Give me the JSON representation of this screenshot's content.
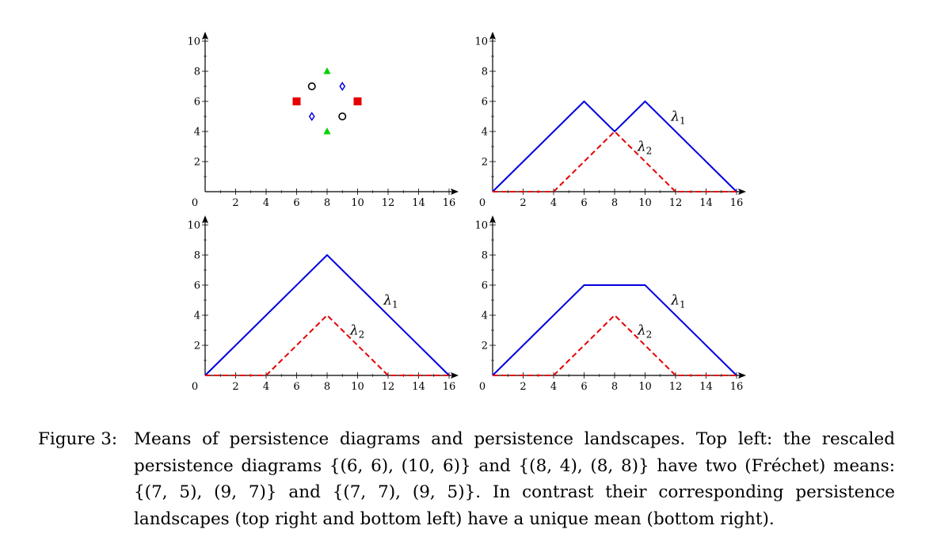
{
  "chart_data": [
    {
      "type": "scatter",
      "xlim": [
        0,
        16
      ],
      "ylim": [
        0,
        10
      ],
      "xticks": [
        0,
        2,
        4,
        6,
        8,
        10,
        12,
        14,
        16
      ],
      "yticks": [
        2,
        4,
        6,
        8,
        10
      ],
      "series": [
        {
          "marker": "square",
          "color": "#e60000",
          "points": [
            [
              6,
              6
            ],
            [
              10,
              6
            ]
          ]
        },
        {
          "marker": "triangle",
          "color": "#00d000",
          "points": [
            [
              8,
              4
            ],
            [
              8,
              8
            ]
          ]
        },
        {
          "marker": "diamond",
          "color": "#0000e0",
          "points": [
            [
              7,
              5
            ],
            [
              9,
              7
            ]
          ]
        },
        {
          "marker": "circle",
          "color": "#000000",
          "points": [
            [
              7,
              7
            ],
            [
              9,
              5
            ]
          ]
        }
      ],
      "labels": []
    },
    {
      "type": "line",
      "xlim": [
        0,
        16
      ],
      "ylim": [
        0,
        10
      ],
      "xticks": [
        0,
        2,
        4,
        6,
        8,
        10,
        12,
        14,
        16
      ],
      "yticks": [
        2,
        4,
        6,
        8,
        10
      ],
      "series": [
        {
          "style": "solid",
          "color": "#0000e0",
          "points": [
            [
              0,
              0
            ],
            [
              6,
              6
            ],
            [
              8,
              4
            ],
            [
              10,
              6
            ],
            [
              16,
              0
            ]
          ]
        },
        {
          "style": "dashed",
          "color": "#e60000",
          "points": [
            [
              0,
              0
            ],
            [
              4,
              0
            ],
            [
              8,
              4
            ],
            [
              12,
              0
            ],
            [
              16,
              0
            ]
          ]
        }
      ],
      "labels": [
        {
          "base": "λ",
          "sub": "1",
          "x": 11.7,
          "y": 4.7
        },
        {
          "base": "λ",
          "sub": "2",
          "x": 9.5,
          "y": 2.7
        }
      ]
    },
    {
      "type": "line",
      "xlim": [
        0,
        16
      ],
      "ylim": [
        0,
        10
      ],
      "xticks": [
        0,
        2,
        4,
        6,
        8,
        10,
        12,
        14,
        16
      ],
      "yticks": [
        2,
        4,
        6,
        8,
        10
      ],
      "series": [
        {
          "style": "solid",
          "color": "#0000e0",
          "points": [
            [
              0,
              0
            ],
            [
              8,
              8
            ],
            [
              16,
              0
            ]
          ]
        },
        {
          "style": "dashed",
          "color": "#e60000",
          "points": [
            [
              0,
              0
            ],
            [
              4,
              0
            ],
            [
              8,
              4
            ],
            [
              12,
              0
            ],
            [
              16,
              0
            ]
          ]
        }
      ],
      "labels": [
        {
          "base": "λ",
          "sub": "1",
          "x": 11.7,
          "y": 4.7
        },
        {
          "base": "λ",
          "sub": "2",
          "x": 9.5,
          "y": 2.7
        }
      ]
    },
    {
      "type": "line",
      "xlim": [
        0,
        16
      ],
      "ylim": [
        0,
        10
      ],
      "xticks": [
        0,
        2,
        4,
        6,
        8,
        10,
        12,
        14,
        16
      ],
      "yticks": [
        2,
        4,
        6,
        8,
        10
      ],
      "series": [
        {
          "style": "solid",
          "color": "#0000e0",
          "points": [
            [
              0,
              0
            ],
            [
              6,
              6
            ],
            [
              10,
              6
            ],
            [
              16,
              0
            ]
          ]
        },
        {
          "style": "dashed",
          "color": "#e60000",
          "points": [
            [
              0,
              0
            ],
            [
              4,
              0
            ],
            [
              8,
              4
            ],
            [
              12,
              0
            ],
            [
              16,
              0
            ]
          ]
        }
      ],
      "labels": [
        {
          "base": "λ",
          "sub": "1",
          "x": 11.7,
          "y": 4.7
        },
        {
          "base": "λ",
          "sub": "2",
          "x": 9.5,
          "y": 2.7
        }
      ]
    }
  ],
  "caption": {
    "label": "Figure 3:",
    "text": "Means of persistence diagrams and persistence landscapes. Top left: the rescaled persistence diagrams {(6, 6), (10, 6)} and {(8, 4), (8, 8)} have two (Fréchet) means: {(7, 5), (9, 7)} and {(7, 7), (9, 5)}. In contrast their corresponding persistence landscapes (top right and bottom left) have a unique mean (bottom right)."
  }
}
